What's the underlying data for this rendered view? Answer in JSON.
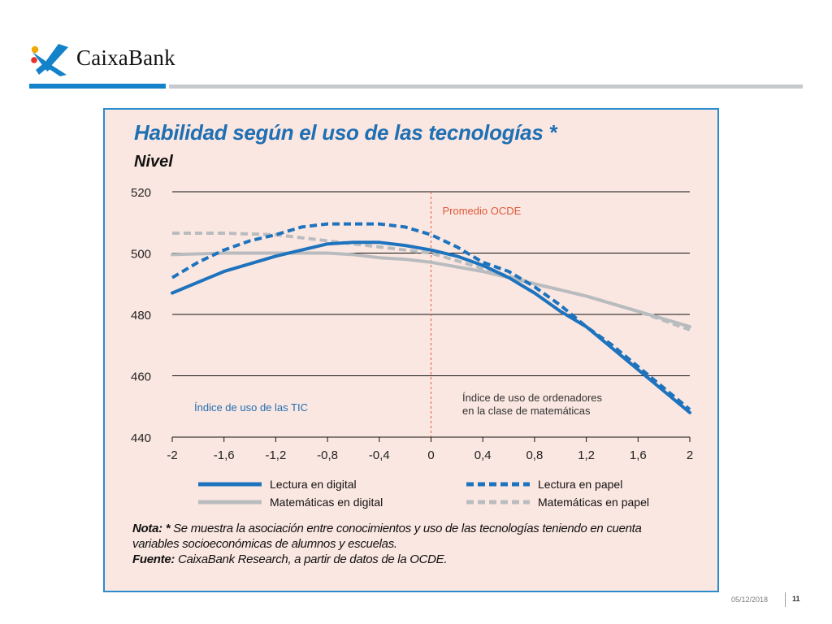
{
  "brand": {
    "name": "CaixaBank",
    "colors": {
      "blue": "#1482c8",
      "gold": "#f2a900",
      "red": "#e4322b",
      "gray_rule": "#c6cacf"
    }
  },
  "chart_title": "Habilidad según el uso de las tecnologías *",
  "chart_subtitle": "Nivel",
  "note": {
    "label": "Nota: *",
    "text_line1": " Se muestra la asociación entre conocimientos y uso de las tecnologías teniendo en cuenta",
    "text_line2": "variables socioeconómicas de alumnos y escuelas.",
    "source_label": "Fuente:",
    "source_text": " CaixaBank Research, a partir de datos de la OCDE."
  },
  "footer": {
    "date": "05/12/2018",
    "page": "11"
  },
  "chart_data": {
    "type": "line",
    "xlim": [
      -2,
      2
    ],
    "ylim": [
      440,
      520
    ],
    "x_ticks": [
      -2,
      -1.6,
      -1.2,
      -0.8,
      -0.4,
      0,
      0.4,
      0.8,
      1.2,
      1.6,
      2
    ],
    "x_tick_labels": [
      "-2",
      "-1,6",
      "-1,2",
      "-0,8",
      "-0,4",
      "0",
      "0,4",
      "0,8",
      "1,2",
      "1,6",
      "2"
    ],
    "y_ticks": [
      440,
      460,
      480,
      500,
      520
    ],
    "y_tick_labels": [
      "440",
      "460",
      "480",
      "500",
      "520"
    ],
    "grid": "horizontal",
    "legend_position": "bottom",
    "reference_line": {
      "x": 0,
      "label": "Promedio OCDE",
      "color": "#e0583a"
    },
    "annotations": [
      {
        "text": "Índice de uso de las TIC",
        "color": "#1e6fb3"
      },
      {
        "lines": [
          "Índice de uso de ordenadores",
          "en la clase de matemáticas"
        ],
        "color": "#333333"
      }
    ],
    "series": [
      {
        "name": "Lectura en digital",
        "style": "solid",
        "color": "#1e73be",
        "x": [
          -2,
          -1.6,
          -1.2,
          -1.0,
          -0.8,
          -0.6,
          -0.4,
          -0.2,
          0,
          0.2,
          0.4,
          0.6,
          0.8,
          1.0,
          1.2,
          1.4,
          1.6,
          1.8,
          2
        ],
        "y": [
          487,
          494,
          499,
          501,
          503,
          503.5,
          503.5,
          502.5,
          501,
          499,
          496,
          492,
          487,
          481,
          476,
          469,
          462,
          455,
          448
        ]
      },
      {
        "name": "Lectura en papel",
        "style": "dashed",
        "color": "#1e73be",
        "x": [
          -2,
          -1.8,
          -1.6,
          -1.4,
          -1.2,
          -1.0,
          -0.8,
          -0.6,
          -0.4,
          -0.2,
          0,
          0.2,
          0.4,
          0.6,
          0.8,
          1.0,
          1.2,
          1.4,
          1.6,
          1.8,
          2
        ],
        "y": [
          492,
          497,
          501,
          504,
          506,
          508.5,
          509.5,
          509.5,
          509.5,
          508.5,
          506,
          502,
          497,
          494,
          489,
          483,
          476,
          470,
          463,
          456,
          449
        ]
      },
      {
        "name": "Matemáticas en digital",
        "style": "solid",
        "color": "#b9bcbf",
        "x": [
          -2,
          -1.6,
          -1.2,
          -0.8,
          -0.6,
          -0.4,
          -0.2,
          0,
          0.4,
          0.8,
          1.2,
          1.6,
          2
        ],
        "y": [
          499.5,
          500,
          500,
          500,
          499.5,
          498.5,
          498,
          497,
          494,
          490,
          486,
          481,
          476
        ]
      },
      {
        "name": "Matemáticas en papel",
        "style": "dashed",
        "color": "#b9bcbf",
        "x": [
          -2,
          -1.6,
          -1.2,
          -0.8,
          -0.6,
          -0.4,
          -0.2,
          0,
          0.4,
          0.8,
          1.2,
          1.6,
          2
        ],
        "y": [
          506.5,
          506.5,
          506,
          504,
          503,
          502,
          501,
          500,
          495,
          490,
          486,
          481,
          475
        ]
      }
    ]
  }
}
